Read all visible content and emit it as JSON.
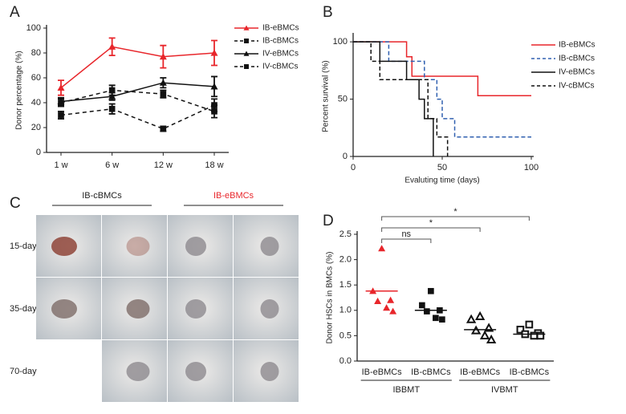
{
  "chart_data": [
    {
      "type": "line",
      "panel_label": "A",
      "ylabel": "Donor percentage (%)",
      "categories": [
        "1 w",
        "6 w",
        "12 w",
        "18 w"
      ],
      "ylim": [
        0,
        100
      ],
      "yticks": [
        0,
        20,
        40,
        60,
        80,
        100
      ],
      "series": [
        {
          "name": "IB-eBMCs",
          "color": "#e8262b",
          "marker": "triangle",
          "dashed": false,
          "values": [
            52,
            85,
            77,
            80
          ],
          "errors": [
            6,
            7,
            9,
            10
          ]
        },
        {
          "name": "IB-cBMCs",
          "color": "#111111",
          "marker": "square",
          "dashed": true,
          "values": [
            40,
            50,
            47,
            33
          ],
          "errors": [
            3,
            4,
            3,
            5
          ]
        },
        {
          "name": "IV-eBMCs",
          "color": "#111111",
          "marker": "triangle",
          "dashed": false,
          "values": [
            41,
            45,
            56,
            53
          ],
          "errors": [
            3,
            3,
            4,
            8
          ]
        },
        {
          "name": "IV-cBMCs",
          "color": "#111111",
          "marker": "square",
          "dashed": true,
          "values": [
            30,
            35,
            19,
            38
          ],
          "errors": [
            3,
            4,
            2,
            5
          ]
        }
      ]
    },
    {
      "type": "step",
      "panel_label": "B",
      "ylabel": "Percent survival (%)",
      "xlabel": "Evaluting time (days)",
      "xlim": [
        0,
        100
      ],
      "xticks": [
        0,
        50,
        100
      ],
      "ylim": [
        0,
        105
      ],
      "yticks": [
        0,
        50,
        100
      ],
      "series": [
        {
          "name": "IB-eBMCs",
          "color": "#e8262b",
          "dashed": false,
          "x": [
            0,
            30,
            33,
            70,
            100
          ],
          "values": [
            100,
            87,
            70,
            53,
            53
          ]
        },
        {
          "name": "IB-cBMCs",
          "color": "#3060b0",
          "dashed": true,
          "x": [
            0,
            20,
            40,
            47,
            50,
            57,
            100
          ],
          "values": [
            100,
            83,
            67,
            50,
            33,
            17,
            17
          ]
        },
        {
          "name": "IV-eBMCs",
          "color": "#111111",
          "dashed": false,
          "x": [
            0,
            15,
            30,
            37,
            40,
            45
          ],
          "values": [
            100,
            83,
            67,
            50,
            33,
            0
          ]
        },
        {
          "name": "IV-cBMCs",
          "color": "#111111",
          "dashed": true,
          "x": [
            0,
            10,
            15,
            42,
            47,
            53
          ],
          "values": [
            100,
            83,
            67,
            33,
            17,
            0
          ]
        }
      ]
    },
    {
      "type": "dot",
      "panel_label": "D",
      "ylabel": "Donor HSCs in BMCs (%)",
      "categories": [
        "IB-eBMCs",
        "IB-cBMCs",
        "IB-eBMCs",
        "IB-cBMCs"
      ],
      "group_labels": [
        "IBBMT",
        "IVBMT"
      ],
      "ylim": [
        0,
        2.5
      ],
      "yticks": [
        {
          "value": 0,
          "label": "0.0"
        },
        0.5,
        {
          "value": 1,
          "label": "1.0"
        },
        1.5,
        {
          "value": 2,
          "label": "2.0"
        },
        2.5
      ],
      "points": [
        [
          2.22,
          1.38,
          1.2,
          1.18,
          1.05,
          0.98
        ],
        [
          1.38,
          1.1,
          1.0,
          0.98,
          0.85,
          0.82
        ],
        [
          0.88,
          0.82,
          0.65,
          0.6,
          0.5,
          0.42
        ],
        [
          0.72,
          0.62,
          0.55,
          0.53,
          0.5,
          0.5
        ]
      ],
      "means": [
        1.38,
        1.0,
        0.62,
        0.53
      ],
      "colors": [
        "#e8262b",
        "#111111",
        "#111111",
        "#111111"
      ],
      "markers": [
        "triangle",
        "square",
        "triangle-open",
        "square-open"
      ],
      "comparisons": [
        "ns",
        "*",
        "*"
      ]
    }
  ],
  "photo_panel": {
    "panel_label": "C",
    "columns": [
      "IB-cBMCs",
      "IB-eBMCs"
    ],
    "column_colors": [
      "#222222",
      "#e8262b"
    ],
    "rows": [
      "15-day",
      "35-day",
      "70-day"
    ]
  }
}
